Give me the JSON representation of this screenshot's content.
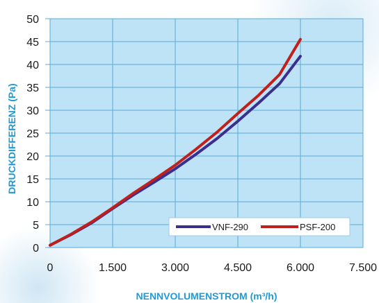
{
  "chart_data": {
    "type": "line",
    "xlabel": "NENNVOLUMENSTROM (m³/h)",
    "ylabel": "DRUCKDIFFERENZ (Pa)",
    "xlim": [
      0,
      7500
    ],
    "ylim": [
      0,
      50
    ],
    "x_ticks": [
      0,
      1500,
      3000,
      4500,
      6000,
      7500
    ],
    "x_tick_labels": [
      "0",
      "1.500",
      "3.000",
      "4.500",
      "6.000",
      "7.500"
    ],
    "y_ticks": [
      0,
      5,
      10,
      15,
      20,
      25,
      30,
      35,
      40,
      45,
      50
    ],
    "y_tick_labels": [
      "0",
      "5",
      "10",
      "15",
      "20",
      "25",
      "30",
      "35",
      "40",
      "45",
      "50"
    ],
    "grid": true,
    "legend_position": "bottom-right",
    "series": [
      {
        "name": "VNF-290",
        "color": "#3a2f8f",
        "x": [
          0,
          500,
          1000,
          1500,
          2000,
          2500,
          3000,
          3500,
          4000,
          4500,
          5000,
          5500,
          6000
        ],
        "y": [
          0.5,
          2.8,
          5.4,
          8.5,
          11.5,
          14.3,
          17.2,
          20.4,
          23.8,
          27.6,
          31.6,
          35.8,
          41.8
        ]
      },
      {
        "name": "PSF-200",
        "color": "#c0201c",
        "x": [
          0,
          500,
          1000,
          1500,
          2000,
          2500,
          3000,
          3500,
          4000,
          4500,
          5000,
          5500,
          6000
        ],
        "y": [
          0.5,
          2.9,
          5.6,
          8.7,
          11.9,
          14.9,
          18.0,
          21.5,
          25.2,
          29.3,
          33.3,
          37.8,
          45.5
        ]
      }
    ]
  }
}
